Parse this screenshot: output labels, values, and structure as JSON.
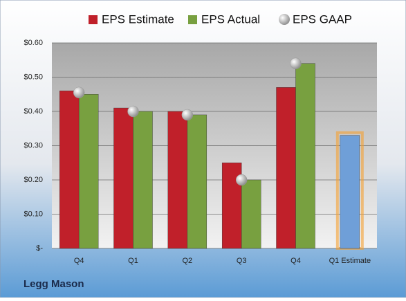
{
  "chart_data": {
    "type": "bar",
    "title": "Legg Mason",
    "categories": [
      "Q4",
      "Q1",
      "Q2",
      "Q3",
      "Q4",
      "Q1 Estimate"
    ],
    "series": [
      {
        "name": "EPS Estimate",
        "color": "#c0202a",
        "values": [
          0.46,
          0.41,
          0.4,
          0.25,
          0.47,
          0.33
        ],
        "point_colors": [
          null,
          null,
          null,
          null,
          null,
          "#6f9fd8"
        ]
      },
      {
        "name": "EPS Actual",
        "color": "#78a040",
        "values": [
          0.45,
          0.4,
          0.39,
          0.2,
          0.54,
          null
        ]
      },
      {
        "name": "EPS GAAP",
        "color": "#b8b8b8",
        "type": "scatter",
        "values": [
          0.455,
          0.4,
          0.39,
          0.2,
          0.54,
          null
        ]
      }
    ],
    "ylim": [
      0,
      0.6
    ],
    "yticks": [
      {
        "value": 0,
        "label": "$-"
      },
      {
        "value": 0.1,
        "label": "$0.10"
      },
      {
        "value": 0.2,
        "label": "$0.20"
      },
      {
        "value": 0.3,
        "label": "$0.30"
      },
      {
        "value": 0.4,
        "label": "$0.40"
      },
      {
        "value": 0.5,
        "label": "$0.50"
      },
      {
        "value": 0.6,
        "label": "$0.60"
      }
    ],
    "grid": true,
    "legend": "top"
  }
}
